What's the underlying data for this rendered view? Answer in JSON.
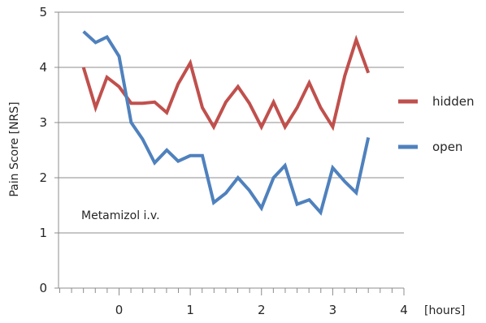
{
  "chart_data": {
    "type": "line",
    "title": "",
    "xlabel": "[hours]",
    "ylabel": "Pain Score [NRS]",
    "xlim": [
      -0.85,
      4.0
    ],
    "ylim": [
      0,
      5
    ],
    "x_ticks": [
      "0",
      "1",
      "2",
      "3",
      "4"
    ],
    "y_ticks": [
      "0",
      "1",
      "2",
      "3",
      "4",
      "5"
    ],
    "grid": "horizontal",
    "legend": "right",
    "annotation": "Metamizol i.v.",
    "series": [
      {
        "name": "hidden",
        "color": "#c0504d",
        "x": [
          -0.5,
          -0.33,
          -0.17,
          0.0,
          0.17,
          0.33,
          0.5,
          0.67,
          0.83,
          1.0,
          1.17,
          1.33,
          1.5,
          1.67,
          1.83,
          2.0,
          2.17,
          2.33,
          2.5,
          2.67,
          2.83,
          3.0,
          3.17,
          3.33,
          3.5
        ],
        "values": [
          4.0,
          3.27,
          3.82,
          3.65,
          3.35,
          3.35,
          3.37,
          3.18,
          3.7,
          4.08,
          3.27,
          2.92,
          3.37,
          3.65,
          3.35,
          2.92,
          3.37,
          2.92,
          3.27,
          3.72,
          3.27,
          2.92,
          3.85,
          4.5,
          3.9
        ]
      },
      {
        "name": "open",
        "color": "#4f81bd",
        "x": [
          -0.5,
          -0.33,
          -0.17,
          0.0,
          0.17,
          0.33,
          0.5,
          0.67,
          0.83,
          1.0,
          1.17,
          1.33,
          1.5,
          1.67,
          1.83,
          2.0,
          2.17,
          2.33,
          2.5,
          2.67,
          2.83,
          3.0,
          3.17,
          3.33,
          3.5
        ],
        "values": [
          4.65,
          4.45,
          4.55,
          4.2,
          3.0,
          2.7,
          2.27,
          2.5,
          2.3,
          2.4,
          2.4,
          1.55,
          1.72,
          2.0,
          1.77,
          1.45,
          2.0,
          2.22,
          1.52,
          1.6,
          1.37,
          2.18,
          1.93,
          1.73,
          2.73
        ]
      }
    ]
  }
}
